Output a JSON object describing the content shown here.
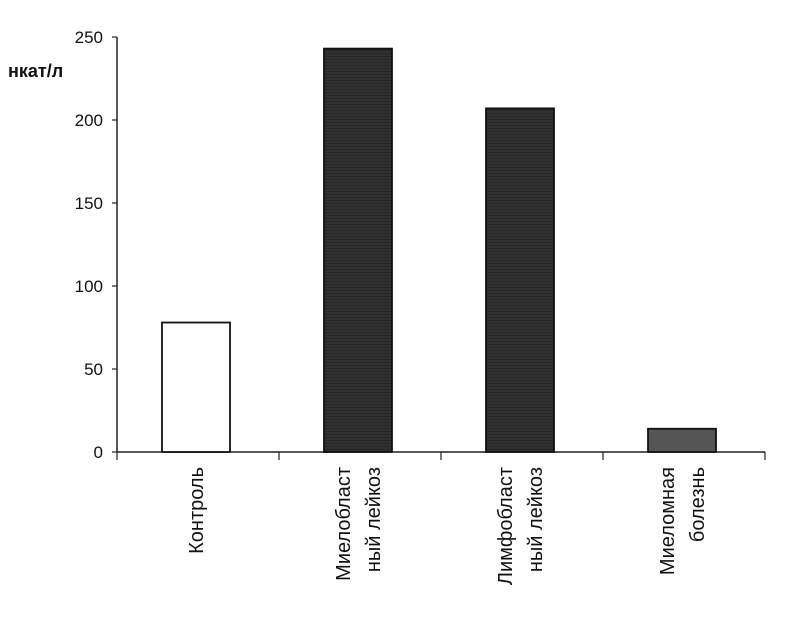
{
  "chart_data": {
    "type": "bar",
    "ylabel": "нкат/л",
    "ylim": [
      0,
      250
    ],
    "yticks": [
      "0",
      "50",
      "100",
      "150",
      "200",
      "250"
    ],
    "grid": false,
    "categories": [
      [
        "Контроль"
      ],
      [
        "Миелобласт",
        "ный лейкоз"
      ],
      [
        "Лимфобласт",
        "ный лейкоз"
      ],
      [
        "Миеломная",
        "болезнь"
      ]
    ],
    "values": [
      78,
      243,
      207,
      14
    ],
    "bar_colors": [
      "#ffffff",
      "#2a2a2a",
      "#2a2a2a",
      "#555555"
    ]
  }
}
